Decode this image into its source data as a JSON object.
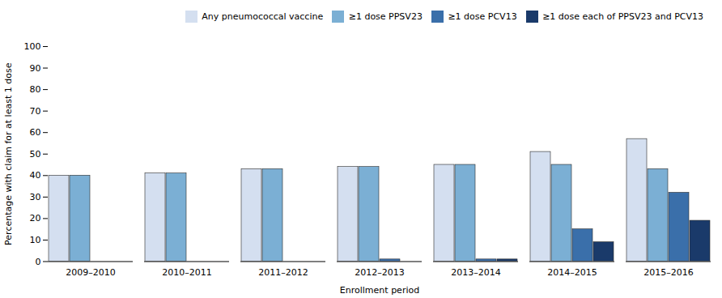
{
  "chart_data": {
    "type": "bar",
    "xlabel": "Enrollment period",
    "ylabel": "Percentage with claim for at least 1 dose",
    "categories": [
      "2009–2010",
      "2010–2011",
      "2011–2012",
      "2012–2013",
      "2013–2014",
      "2014–2015",
      "2015–2016"
    ],
    "series": [
      {
        "name": "Any pneumococcal vaccine",
        "color": "#d4dff0",
        "values": [
          40,
          41,
          43,
          44,
          45,
          51,
          57
        ]
      },
      {
        "name": "≥1 dose PPSV23",
        "color": "#7bafd4",
        "values": [
          40,
          41,
          43,
          44,
          45,
          45,
          43
        ]
      },
      {
        "name": "≥1 dose PCV13",
        "color": "#3a6faa",
        "values": [
          0,
          0,
          0,
          1,
          1,
          15,
          32
        ]
      },
      {
        "name": "≥1 dose each of PPSV23 and PCV13",
        "color": "#1a3a6a",
        "values": [
          0,
          0,
          0,
          0,
          1,
          9,
          19
        ]
      }
    ],
    "ylim": [
      0,
      100
    ],
    "yticks": [
      0,
      10,
      20,
      30,
      40,
      50,
      60,
      70,
      80,
      90,
      100
    ],
    "grid": false,
    "legend": "upper right"
  }
}
